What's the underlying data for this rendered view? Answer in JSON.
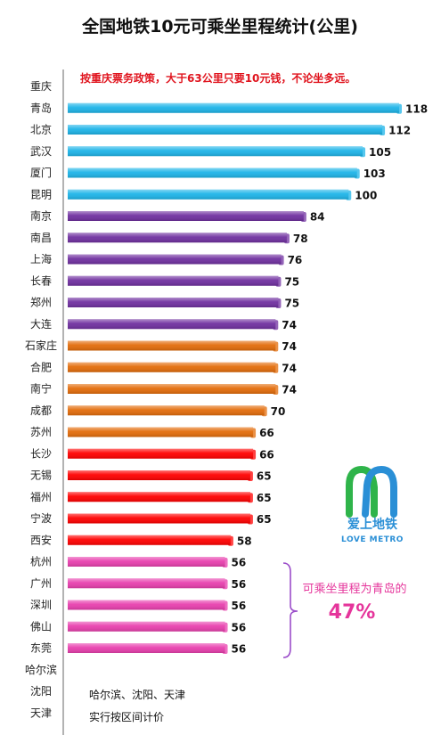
{
  "chart_data": {
    "type": "bar",
    "orientation": "horizontal",
    "title": "全国地铁10元可乘坐里程统计(公里)",
    "categories": [
      "重庆",
      "青岛",
      "北京",
      "武汉",
      "厦门",
      "昆明",
      "南京",
      "南昌",
      "上海",
      "长春",
      "郑州",
      "大连",
      "石家庄",
      "合肥",
      "南宁",
      "成都",
      "苏州",
      "长沙",
      "无锡",
      "福州",
      "宁波",
      "西安",
      "杭州",
      "广州",
      "深圳",
      "佛山",
      "东莞",
      "哈尔滨",
      "沈阳",
      "天津"
    ],
    "values": [
      null,
      118,
      112,
      105,
      103,
      100,
      84,
      78,
      76,
      75,
      75,
      74,
      74,
      74,
      74,
      70,
      66,
      66,
      65,
      65,
      65,
      58,
      56,
      56,
      56,
      56,
      56,
      null,
      null,
      null
    ],
    "colors": [
      null,
      "#1db4e8",
      "#1db4e8",
      "#1db4e8",
      "#1db4e8",
      "#1db4e8",
      "#7030a0",
      "#7030a0",
      "#7030a0",
      "#7030a0",
      "#7030a0",
      "#7030a0",
      "#e36c0a",
      "#e36c0a",
      "#e36c0a",
      "#e36c0a",
      "#e36c0a",
      "#ff0000",
      "#ff0000",
      "#ff0000",
      "#ff0000",
      "#ff0000",
      "#e83fae",
      "#e83fae",
      "#e83fae",
      "#e83fae",
      "#e83fae",
      null,
      null,
      null
    ],
    "xlim": [
      0,
      118
    ],
    "grid": false,
    "legend": "none"
  },
  "annotations": {
    "top_note": "按重庆票务政策，大于63公里只要10元钱，不论坐多远。",
    "bottom_note_line1": "哈尔滨、沈阳、天津",
    "bottom_note_line2": "实行按区间计价",
    "bracket_label": "可乘坐里程为青岛的",
    "bracket_percent": "47%"
  },
  "logo": {
    "name_cn": "爱上地铁",
    "name_en": "LOVE METRO",
    "colors": [
      "#2fb44a",
      "#2a8fd6"
    ]
  }
}
